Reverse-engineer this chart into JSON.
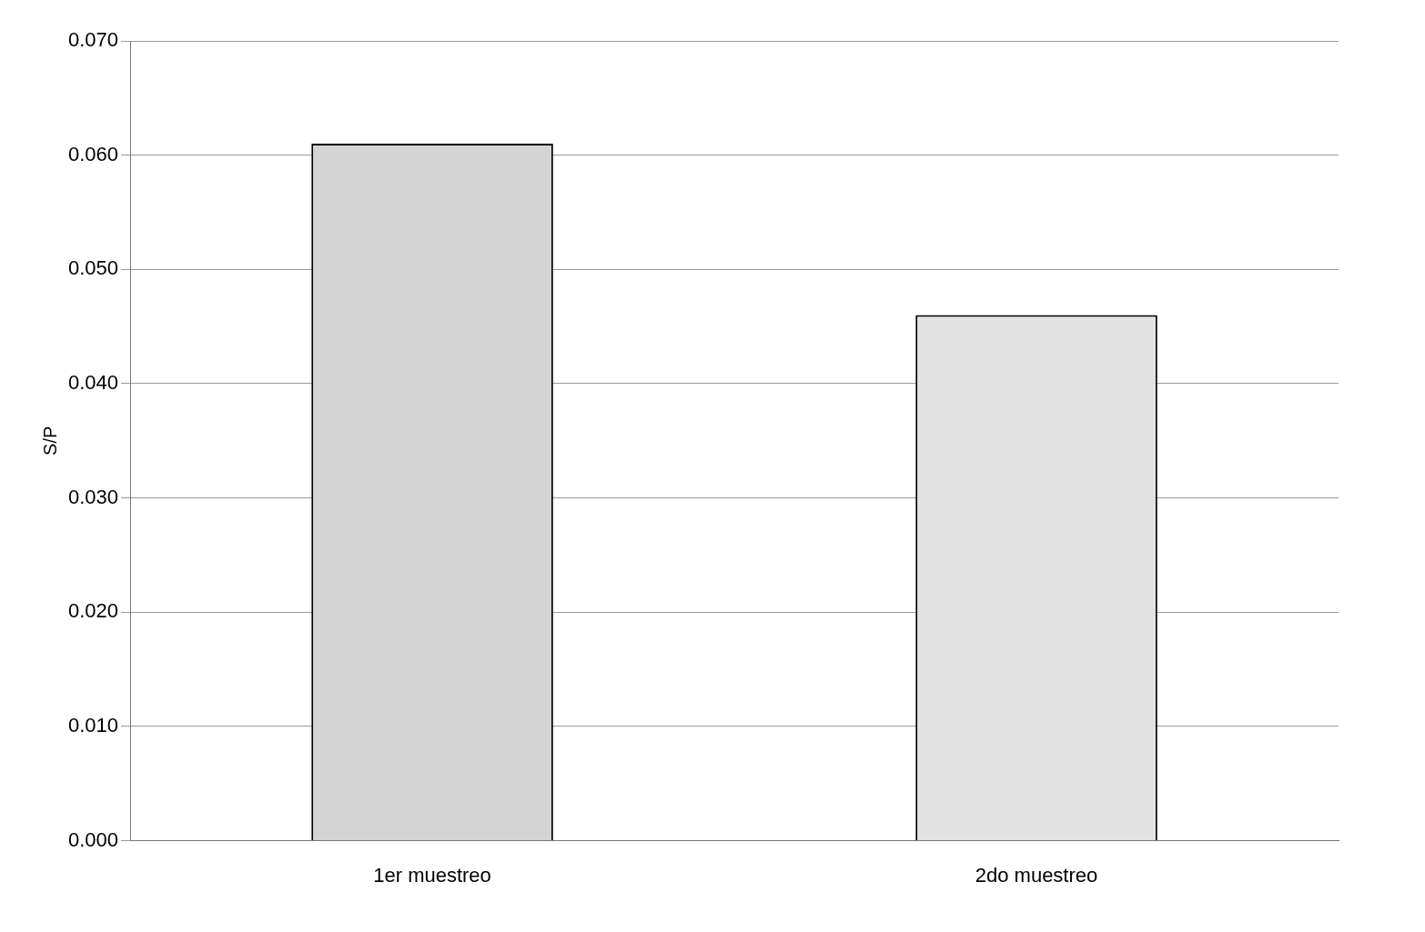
{
  "chart_data": {
    "type": "bar",
    "ylabel": "S/P",
    "categories": [
      "1er muestreo",
      "2do muestreo"
    ],
    "values": [
      0.061,
      0.046
    ],
    "colors": [
      "#d4d4d4",
      "#e2e2e2"
    ],
    "ylim": [
      0,
      0.07
    ],
    "yticks": [
      {
        "value": 0,
        "label": "0.000"
      },
      {
        "value": 0.01,
        "label": "0.010"
      },
      {
        "value": 0.02,
        "label": "0.020"
      },
      {
        "value": 0.03,
        "label": "0.030"
      },
      {
        "value": 0.04,
        "label": "0.040"
      },
      {
        "value": 0.05,
        "label": "0.050"
      },
      {
        "value": 0.06,
        "label": "0.060"
      },
      {
        "value": 0.07,
        "label": "0.070"
      }
    ],
    "grid": "y",
    "legend": false
  }
}
